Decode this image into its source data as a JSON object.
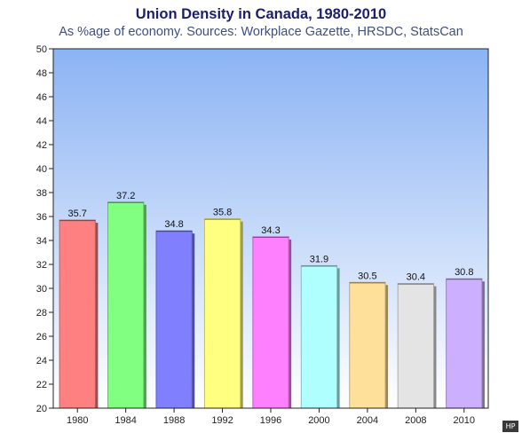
{
  "chart_data": {
    "type": "bar",
    "title": "Union Density in Canada, 1980-2010",
    "subtitle": "As %age of economy. Sources: Workplace Gazette, HRSDC, StatsCan",
    "xlabel": "",
    "ylabel": "",
    "categories": [
      "1980",
      "1984",
      "1988",
      "1992",
      "1996",
      "2000",
      "2004",
      "2008",
      "2010"
    ],
    "values": [
      35.7,
      37.2,
      34.8,
      35.8,
      34.3,
      31.9,
      30.5,
      30.4,
      30.8
    ],
    "value_labels": [
      "35.7",
      "37.2",
      "34.8",
      "35.8",
      "34.3",
      "31.9",
      "30.5",
      "30.4",
      "30.8"
    ],
    "ylim": [
      20,
      50
    ],
    "yticks": [
      "20",
      "22",
      "24",
      "26",
      "28",
      "30",
      "32",
      "34",
      "36",
      "38",
      "40",
      "42",
      "44",
      "46",
      "48",
      "50"
    ],
    "grid": false,
    "legend": "none",
    "bar_colors": [
      "#ff8080",
      "#80ff80",
      "#8080ff",
      "#ffff80",
      "#ff80ff",
      "#b0ffff",
      "#ffe09a",
      "#e4e4e4",
      "#ccb0ff"
    ],
    "background_gradient": [
      "#8bb3f4",
      "#ffffff"
    ]
  },
  "watermark": "HP"
}
